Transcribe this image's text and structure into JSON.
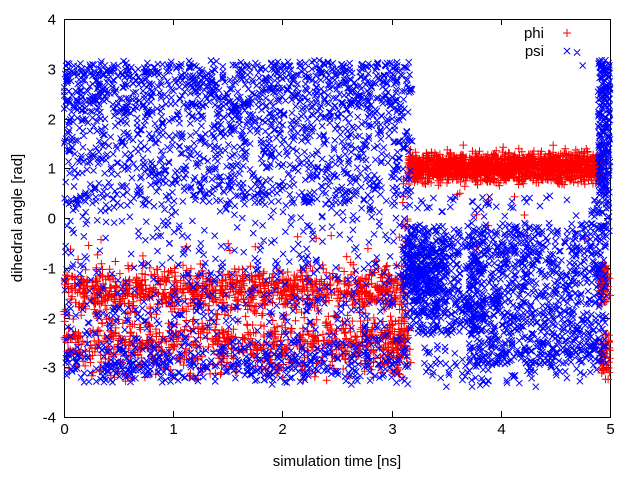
{
  "window": {
    "background": "#ffffff",
    "axis_color": "#000000"
  },
  "chart_data": {
    "type": "scatter",
    "title": "",
    "xlabel": "simulation time [ns]",
    "ylabel": "dihedral angle [rad]",
    "xlim": [
      0,
      5
    ],
    "ylim": [
      -4,
      4
    ],
    "xticks": [
      0,
      1,
      2,
      3,
      4,
      5
    ],
    "yticks": [
      -4,
      -3,
      -2,
      -1,
      0,
      1,
      2,
      3,
      4
    ],
    "grid": false,
    "legend": {
      "position": "top-right-inside",
      "entries": [
        "phi",
        "psi"
      ]
    },
    "seed": 11,
    "series": [
      {
        "name": "phi",
        "color": "#ff0000",
        "marker": "plus",
        "clusters": [
          {
            "n": 950,
            "t": [
              0,
              3.12
            ],
            "dist": "gauss",
            "mean": -1.45,
            "sd": 0.22,
            "clip": [
              -2.05,
              -0.8
            ]
          },
          {
            "n": 780,
            "t": [
              0,
              3.12
            ],
            "dist": "gauss",
            "mean": -2.55,
            "sd": 0.33,
            "clip": [
              -3.3,
              -1.85
            ]
          },
          {
            "n": 20,
            "t": [
              0.05,
              3.05
            ],
            "dist": "uniform",
            "y": [
              -0.95,
              -0.35
            ]
          },
          {
            "n": 70,
            "t": [
              2.95,
              3.16
            ],
            "dist": "gauss",
            "mean": -2.5,
            "sd": 0.35,
            "clip": [
              -3.2,
              -1.6
            ]
          },
          {
            "n": 30,
            "t": [
              3.07,
              3.18
            ],
            "dist": "uniform",
            "y": [
              -3.0,
              0.8
            ]
          },
          {
            "n": 1550,
            "t": [
              3.15,
              4.93
            ],
            "dist": "gauss",
            "mean": 1.02,
            "sd": 0.15,
            "clip": [
              0.62,
              1.5
            ]
          },
          {
            "n": 10,
            "t": [
              3.25,
              4.85
            ],
            "dist": "uniform",
            "y": [
              -0.7,
              0.55
            ]
          },
          {
            "n": 60,
            "t": [
              4.91,
              5.0
            ],
            "dist": "gauss",
            "mean": -1.3,
            "sd": 0.22,
            "clip": [
              -1.8,
              -0.9
            ]
          },
          {
            "n": 50,
            "t": [
              4.91,
              5.0
            ],
            "dist": "gauss",
            "mean": -2.75,
            "sd": 0.28,
            "clip": [
              -3.25,
              -2.3
            ]
          }
        ]
      },
      {
        "name": "psi",
        "color": "#0000ff",
        "marker": "cross",
        "clusters": [
          {
            "n": 1500,
            "t": [
              0,
              3.19
            ],
            "dist": "uniform",
            "y": [
              0.25,
              3.15
            ]
          },
          {
            "n": 360,
            "t": [
              0,
              3.19
            ],
            "dist": "uniform",
            "y": [
              2.1,
              3.17
            ]
          },
          {
            "n": 160,
            "t": [
              0,
              3.17
            ],
            "dist": "uniform",
            "y": [
              -0.9,
              0.25
            ]
          },
          {
            "n": 480,
            "t": [
              0,
              3.15
            ],
            "dist": "uniform",
            "y": [
              -3.3,
              -0.9
            ]
          },
          {
            "n": 320,
            "t": [
              0,
              3.15
            ],
            "dist": "gauss",
            "mean": -2.95,
            "sd": 0.25,
            "clip": [
              -3.35,
              -2.35
            ]
          },
          {
            "n": 300,
            "t": [
              3.1,
              3.5
            ],
            "dist": "gauss",
            "mean": -1.05,
            "sd": 0.45,
            "clip": [
              -2.3,
              -0.1
            ]
          },
          {
            "n": 380,
            "t": [
              3.17,
              3.85
            ],
            "dist": "uniform",
            "y": [
              -2.35,
              -0.15
            ]
          },
          {
            "n": 950,
            "t": [
              3.7,
              4.97
            ],
            "dist": "uniform",
            "y": [
              -2.95,
              -0.1
            ]
          },
          {
            "n": 130,
            "t": [
              3.3,
              4.97
            ],
            "dist": "gauss",
            "mean": -2.95,
            "sd": 0.3,
            "clip": [
              -3.4,
              -2.55
            ]
          },
          {
            "n": 40,
            "t": [
              3.2,
              4.9
            ],
            "dist": "uniform",
            "y": [
              0.0,
              0.45
            ]
          },
          {
            "n": 2,
            "t": [
              4.68,
              4.8
            ],
            "dist": "uniform",
            "y": [
              3.0,
              3.35
            ]
          },
          {
            "n": 230,
            "t": [
              4.89,
              5.0
            ],
            "dist": "uniform",
            "y": [
              0.45,
              3.18
            ]
          },
          {
            "n": 30,
            "t": [
              4.85,
              5.0
            ],
            "dist": "uniform",
            "y": [
              -0.5,
              0.45
            ]
          }
        ]
      }
    ]
  }
}
